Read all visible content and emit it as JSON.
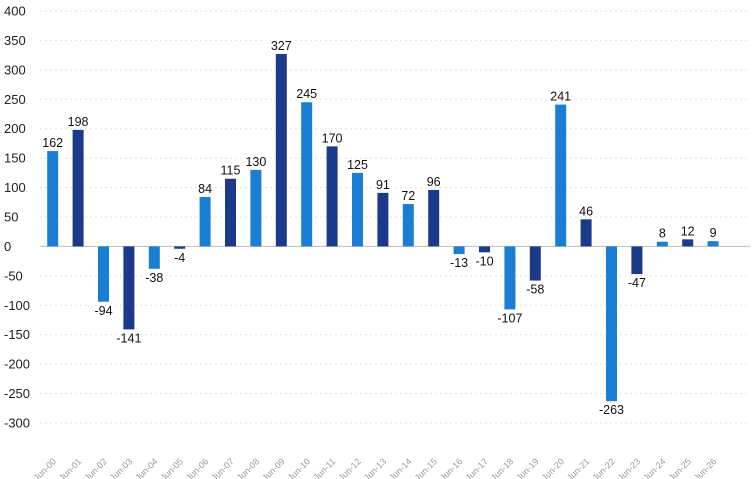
{
  "chart_data": {
    "type": "bar",
    "categories": [
      "Jun-00",
      "Jun-01",
      "Jun-02",
      "Jun-03",
      "Jun-04",
      "Jun-05",
      "Jun-06",
      "Jun-07",
      "Jun-08",
      "Jun-09",
      "Jun-10",
      "Jun-11",
      "Jun-12",
      "Jun-13",
      "Jun-14",
      "Jun-15",
      "Jun-16",
      "Jun-17",
      "Jun-18",
      "Jun-19",
      "Jun-20",
      "Jun-21",
      "Jun-22",
      "Jun-23",
      "Jun-24",
      "Jun-25",
      "Jun-26"
    ],
    "values": [
      162,
      198,
      -94,
      -141,
      -38,
      -4,
      84,
      115,
      130,
      327,
      245,
      170,
      125,
      91,
      72,
      96,
      -13,
      -10,
      -107,
      -58,
      241,
      46,
      -263,
      -47,
      8,
      12,
      9
    ],
    "data_labels": [
      "162",
      "198",
      "-94",
      "-141",
      "-38",
      "-4",
      "84",
      "115",
      "130",
      "327",
      "245",
      "170",
      "125",
      "91",
      "72",
      "96",
      "-13",
      "-10",
      "-107",
      "-58",
      "241",
      "46",
      "-263",
      "-47",
      "8",
      "12",
      "9"
    ],
    "ylim": [
      -300,
      400
    ],
    "yticks": [
      -300,
      -250,
      -200,
      -150,
      -100,
      -50,
      0,
      50,
      100,
      150,
      200,
      250,
      300,
      350,
      400
    ],
    "ytick_labels": [
      "-300",
      "-250",
      "-200",
      "-150",
      "-100",
      "-50",
      "0",
      "50",
      "100",
      "150",
      "200",
      "250",
      "300",
      "350",
      "400"
    ],
    "grid": true,
    "colors": {
      "light": "#1a7fd4",
      "dark": "#1d3a8a"
    },
    "bar_color_pattern": [
      "light",
      "dark"
    ],
    "title": "",
    "xlabel": "",
    "ylabel": ""
  }
}
